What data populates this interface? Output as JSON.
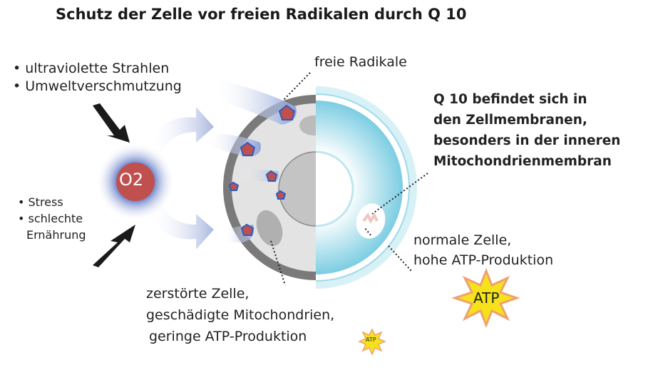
{
  "title": "Schutz der Zelle vor freien Radikalen durch Q 10",
  "causes_top": [
    "• ultraviolette Strahlen",
    "• Umweltverschmutzung"
  ],
  "causes_bottom": [
    "• Stress",
    "• schlechte",
    "Ernährung"
  ],
  "oxygen_label": "O2",
  "radicals_label": "freie Radikale",
  "q10_label": [
    "Q 10 befindet sich in",
    "den Zellmembranen,",
    "besonders in der inneren",
    "Mitochondrienmembran"
  ],
  "normal_cell": [
    "normale Zelle,",
    "hohe  ATP-Produktion"
  ],
  "destroyed_cell": [
    "zerstörte Zelle,",
    "geschädigte Mitochondrien,",
    "geringe ATP-Produktion"
  ],
  "atp_label": "ATP",
  "colors": {
    "radical": "#c0504d",
    "healthy_cell": "#a8dcea",
    "damaged_cell": "#d9d9d9",
    "atp_star": "#f5e21a"
  }
}
